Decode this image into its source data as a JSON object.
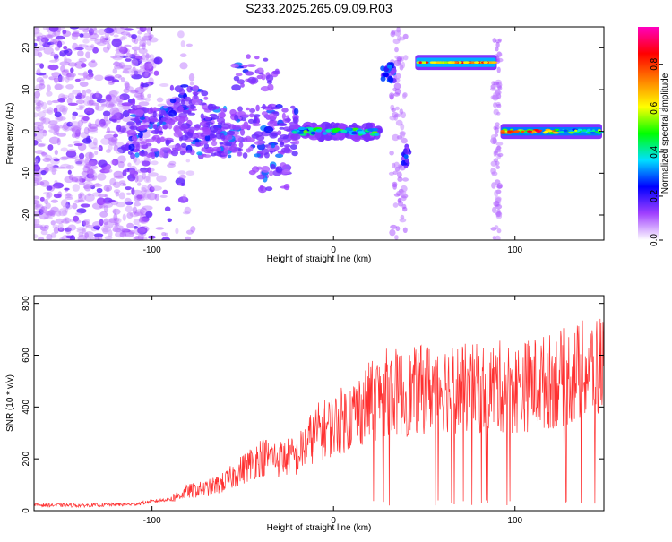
{
  "chart_data": [
    {
      "type": "heatmap",
      "title": "S233.2025.265.09.09.R03",
      "xlabel": "Height of straight line (km)",
      "ylabel": "Frequency (Hz)",
      "xlim": [
        -165,
        149
      ],
      "ylim": [
        -26,
        25
      ],
      "x_ticks": [
        -100,
        0,
        100
      ],
      "y_ticks": [
        -20,
        -10,
        0,
        10,
        20
      ],
      "colorbar": {
        "label": "Normalized spectral amplitude",
        "range": [
          0,
          0.97
        ],
        "ticks": [
          0.0,
          0.2,
          0.4,
          0.6,
          0.8
        ],
        "colormap": [
          "#ffffff",
          "#a040ff",
          "#0000ff",
          "#00e0ff",
          "#00ff00",
          "#ffff00",
          "#ff8000",
          "#ff0000",
          "#ff00c0"
        ]
      },
      "features": [
        {
          "name": "central-trace",
          "x_range": [
            -22,
            25
          ],
          "freq": 0,
          "amplitude": 0.45
        },
        {
          "name": "upper-plateau",
          "x_range": [
            45,
            90
          ],
          "freq": 16.5,
          "amplitude": 0.9
        },
        {
          "name": "right-trace",
          "x_range": [
            92,
            148
          ],
          "freq": 0,
          "amplitude": 0.85
        },
        {
          "name": "jump-spot",
          "x_range": [
            27,
            34
          ],
          "freq": 14,
          "amplitude": 0.3
        },
        {
          "name": "dip-spot",
          "x_range": [
            38,
            42
          ],
          "freq": -6,
          "amplitude": 0.3
        },
        {
          "name": "noise-region",
          "x_range": [
            -165,
            -100
          ],
          "freq_range": [
            -25,
            25
          ],
          "amplitude": 0.1
        }
      ]
    },
    {
      "type": "line",
      "xlabel": "Height of straight line (km)",
      "ylabel": "SNR (10 * v/v)",
      "xlim": [
        -165,
        149
      ],
      "ylim": [
        0,
        830
      ],
      "x_ticks": [
        -100,
        0,
        100
      ],
      "y_ticks": [
        0,
        200,
        400,
        600,
        800
      ],
      "series": [
        {
          "name": "SNR",
          "color": "#ff3030",
          "envelope_x": [
            -165,
            -140,
            -110,
            -90,
            -80,
            -70,
            -60,
            -50,
            -40,
            -30,
            -20,
            -10,
            0,
            10,
            20,
            30,
            40,
            50,
            60,
            70,
            80,
            90,
            100,
            110,
            120,
            130,
            140,
            149
          ],
          "envelope_y": [
            22,
            20,
            25,
            45,
            75,
            85,
            110,
            160,
            210,
            200,
            210,
            300,
            330,
            370,
            420,
            460,
            450,
            470,
            480,
            470,
            470,
            480,
            470,
            490,
            500,
            520,
            540,
            560
          ]
        }
      ]
    }
  ]
}
